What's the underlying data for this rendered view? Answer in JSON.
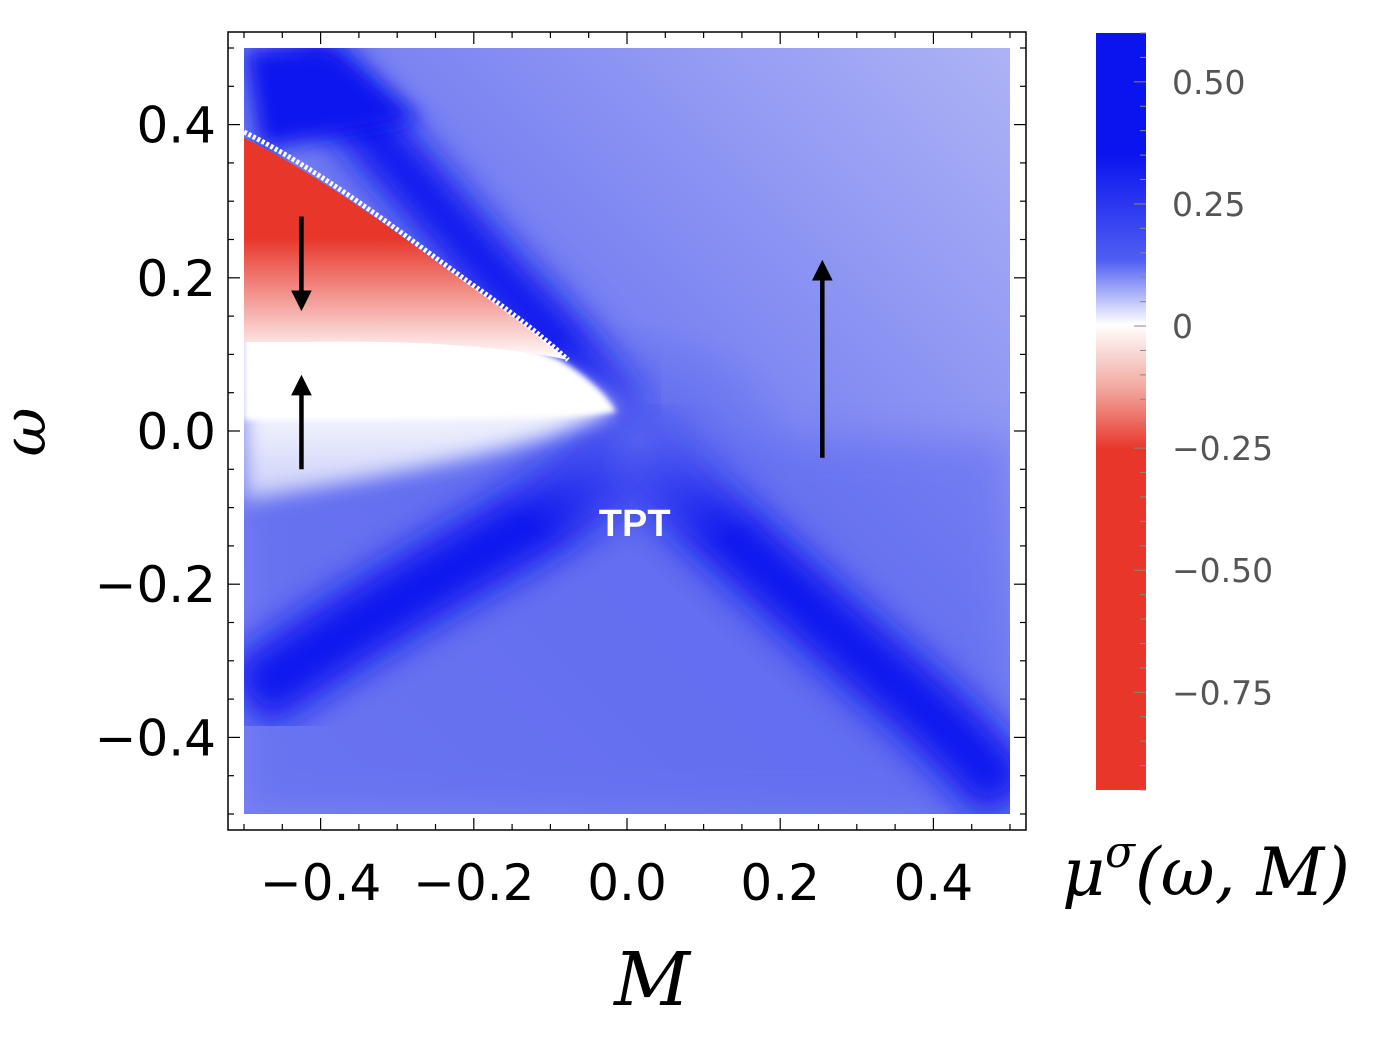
{
  "chart_data": {
    "type": "heatmap",
    "title": "",
    "xlabel": "M",
    "ylabel": "ω",
    "xlim": [
      -0.5,
      0.5
    ],
    "ylim": [
      -0.5,
      0.5
    ],
    "x_ticks": [
      -0.4,
      -0.2,
      0.0,
      0.2,
      0.4
    ],
    "x_tick_labels": [
      "−0.4",
      "−0.2",
      "0.0",
      "0.2",
      "0.4"
    ],
    "y_ticks": [
      -0.4,
      -0.2,
      0.0,
      0.2,
      0.4
    ],
    "y_tick_labels": [
      "−0.4",
      "−0.2",
      "0.0",
      "0.2",
      "0.4"
    ],
    "colorbar": {
      "label": "μ^σ(ω, M)",
      "label_base": "μ",
      "label_sup": "σ",
      "label_args": "(ω, M)",
      "range": [
        -0.95,
        0.6
      ],
      "ticks": [
        0.5,
        0.25,
        0,
        -0.25,
        -0.5,
        -0.75
      ],
      "tick_labels": [
        "0.50",
        "0.25",
        "0",
        "−0.25",
        "−0.50",
        "−0.75"
      ],
      "colors": {
        "negative": "#e8362a",
        "zero": "#ffffff",
        "positive": "#0a14ef"
      }
    },
    "annotations": [
      {
        "text": "TPT",
        "x": 0.01,
        "y": -0.12
      }
    ],
    "arrows": [
      {
        "x_start": -0.425,
        "y_start": 0.28,
        "x_end": -0.425,
        "y_end": 0.17,
        "direction": "down"
      },
      {
        "x_start": -0.425,
        "y_start": -0.05,
        "x_end": -0.425,
        "y_end": 0.06,
        "direction": "up"
      },
      {
        "x_start": 0.255,
        "y_start": -0.035,
        "x_end": 0.255,
        "y_end": 0.21,
        "direction": "up"
      }
    ]
  }
}
